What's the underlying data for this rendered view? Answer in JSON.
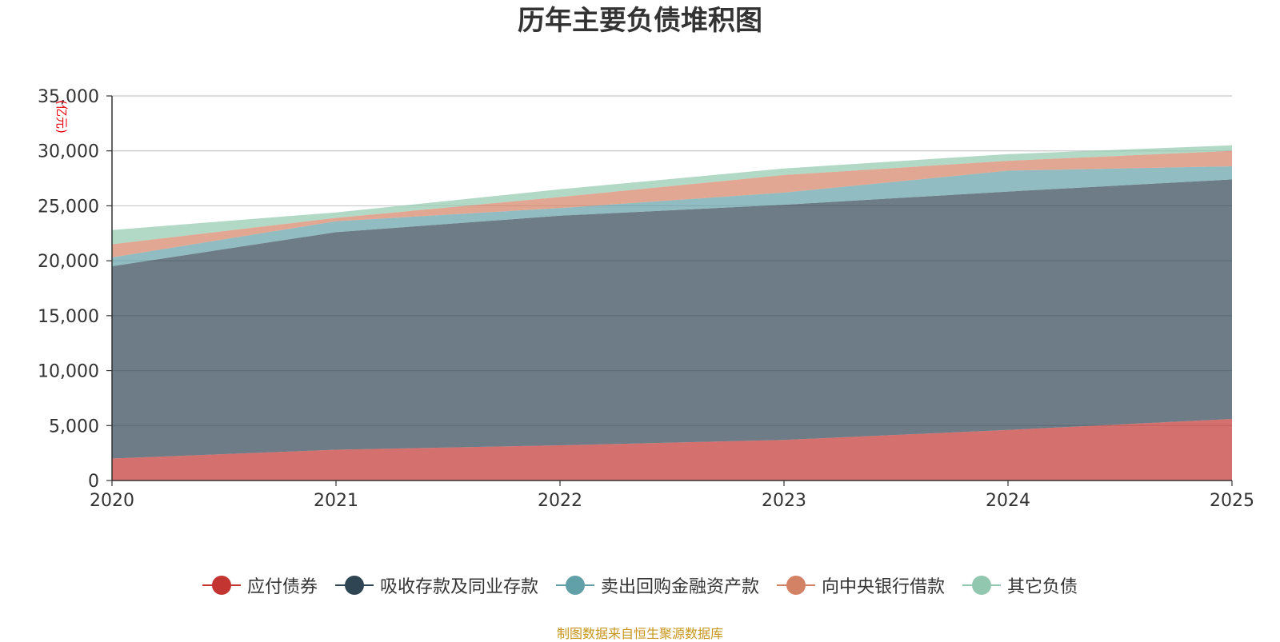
{
  "chart_data": {
    "type": "area",
    "stacked": true,
    "title": "历年主要负债堆积图",
    "unit": "(亿元)",
    "x": [
      "2020",
      "2021",
      "2022",
      "2023",
      "2024",
      "2025"
    ],
    "ylim": [
      0,
      35000
    ],
    "yticks": [
      0,
      5000,
      10000,
      15000,
      20000,
      25000,
      30000,
      35000
    ],
    "ytick_labels": [
      "0",
      "5,000",
      "10,000",
      "15,000",
      "20,000",
      "25,000",
      "30,000",
      "35,000"
    ],
    "grid": true,
    "legend_position": "bottom-center",
    "series": [
      {
        "name": "应付债券",
        "color": "#c23531",
        "values": [
          2000,
          2800,
          3200,
          3700,
          4600,
          5600
        ]
      },
      {
        "name": "吸收存款及同业存款",
        "color": "#2f4554",
        "values": [
          17500,
          19800,
          20900,
          21400,
          21700,
          21800
        ]
      },
      {
        "name": "卖出回购金融资产款",
        "color": "#61a0a8",
        "values": [
          800,
          1000,
          700,
          1100,
          1900,
          1200
        ]
      },
      {
        "name": "向中央银行借款",
        "color": "#d48265",
        "values": [
          1200,
          300,
          1000,
          1600,
          900,
          1400
        ]
      },
      {
        "name": "其它负债",
        "color": "#91c7ae",
        "values": [
          1300,
          500,
          700,
          600,
          600,
          500
        ]
      }
    ]
  },
  "footer": {
    "source_note": "制图数据来自恒生聚源数据库"
  }
}
